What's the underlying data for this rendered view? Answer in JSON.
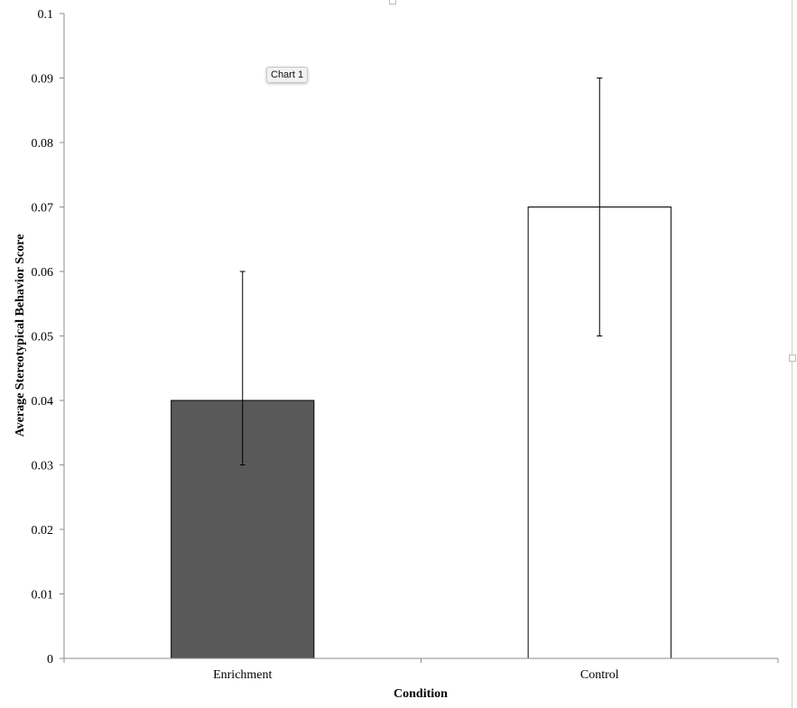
{
  "tooltip": {
    "label": "Chart 1"
  },
  "chart_data": {
    "type": "bar",
    "categories": [
      "Enrichment",
      "Control"
    ],
    "values": [
      0.04,
      0.07
    ],
    "errors": [
      {
        "low": 0.03,
        "high": 0.06
      },
      {
        "low": 0.05,
        "high": 0.09
      }
    ],
    "bar_colors": [
      "#595959",
      "#ffffff"
    ],
    "xlabel": "Condition",
    "ylabel": "Average Stereotypical Behavior Score",
    "ylim": [
      0,
      0.1
    ],
    "yticks": [
      "0",
      "0.01",
      "0.02",
      "0.03",
      "0.04",
      "0.05",
      "0.06",
      "0.07",
      "0.08",
      "0.09",
      "0.1"
    ],
    "grid": false,
    "legend": "none"
  }
}
